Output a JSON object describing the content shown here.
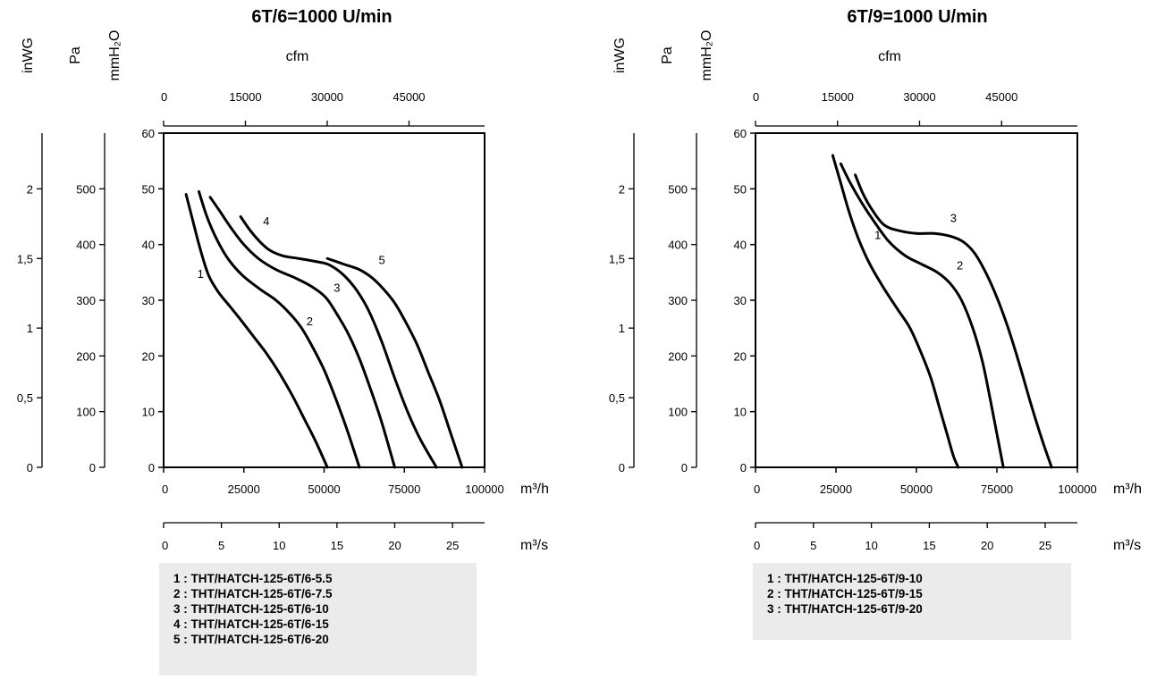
{
  "chart_data": [
    {
      "type": "line",
      "title": "6T/6=1000 U/min",
      "axes": {
        "left_labels": [
          "inWG",
          "Pa",
          "mmH₂O"
        ],
        "top_label": "cfm",
        "bottom_unit_1": "m³/h",
        "bottom_unit_2": "m³/s",
        "x_range": [
          0,
          100000
        ],
        "y_range": [
          0,
          60
        ],
        "x_ticks": [
          "0",
          "25000",
          "50000",
          "75000",
          "100000"
        ],
        "y_ticks": [
          "0",
          "10",
          "20",
          "30",
          "40",
          "50",
          "60"
        ],
        "pa_ticks": [
          "0",
          "100",
          "200",
          "300",
          "400",
          "500"
        ],
        "inwg_ticks": [
          "0",
          "0,5",
          "1",
          "1,5",
          "2"
        ],
        "cfm_ticks": [
          "0",
          "15000",
          "30000",
          "45000"
        ],
        "m3s_ticks": [
          "0",
          "5",
          "10",
          "15",
          "20",
          "25"
        ]
      },
      "series": [
        {
          "label": "1",
          "points": [
            [
              7000,
              49
            ],
            [
              9000,
              44.5
            ],
            [
              11500,
              39
            ],
            [
              14000,
              34.5
            ],
            [
              17000,
              31.5
            ],
            [
              20500,
              29
            ],
            [
              24000,
              26.5
            ],
            [
              28000,
              23.5
            ],
            [
              32000,
              20.5
            ],
            [
              36000,
              17
            ],
            [
              40000,
              13
            ],
            [
              44000,
              8.5
            ],
            [
              47500,
              4.5
            ],
            [
              51000,
              0
            ]
          ]
        },
        {
          "label": "2",
          "points": [
            [
              11000,
              49.5
            ],
            [
              13500,
              45
            ],
            [
              16500,
              41
            ],
            [
              20000,
              37.5
            ],
            [
              24500,
              34.5
            ],
            [
              30000,
              32
            ],
            [
              35000,
              30
            ],
            [
              39500,
              27.5
            ],
            [
              43000,
              25
            ],
            [
              46500,
              21.5
            ],
            [
              50000,
              17.5
            ],
            [
              53500,
              12.5
            ],
            [
              57000,
              7
            ],
            [
              61000,
              0
            ]
          ]
        },
        {
          "label": "3",
          "points": [
            [
              14500,
              48.5
            ],
            [
              17500,
              46
            ],
            [
              21000,
              43
            ],
            [
              25000,
              40
            ],
            [
              29500,
              37.5
            ],
            [
              35000,
              35.5
            ],
            [
              41000,
              34
            ],
            [
              46000,
              32.5
            ],
            [
              50500,
              30.5
            ],
            [
              54000,
              27.5
            ],
            [
              57500,
              24
            ],
            [
              61000,
              19.5
            ],
            [
              64500,
              14
            ],
            [
              68000,
              8
            ],
            [
              72000,
              0
            ]
          ]
        },
        {
          "label": "4",
          "points": [
            [
              24000,
              45
            ],
            [
              27000,
              42.5
            ],
            [
              30000,
              40.5
            ],
            [
              33000,
              39
            ],
            [
              37000,
              38
            ],
            [
              42000,
              37.5
            ],
            [
              47000,
              37
            ],
            [
              51000,
              36.5
            ],
            [
              54000,
              35.5
            ],
            [
              57000,
              34
            ],
            [
              60500,
              31.5
            ],
            [
              64000,
              28
            ],
            [
              68000,
              22.5
            ],
            [
              72000,
              16
            ],
            [
              76000,
              10
            ],
            [
              80000,
              5
            ],
            [
              85000,
              0
            ]
          ]
        },
        {
          "label": "5",
          "points": [
            [
              51000,
              37.5
            ],
            [
              56000,
              36.5
            ],
            [
              61000,
              35.5
            ],
            [
              65000,
              34
            ],
            [
              68500,
              32
            ],
            [
              72000,
              29.5
            ],
            [
              75500,
              26
            ],
            [
              79000,
              22
            ],
            [
              82500,
              17
            ],
            [
              86000,
              12
            ],
            [
              89500,
              6
            ],
            [
              93000,
              0
            ]
          ]
        }
      ],
      "curve_label_positions": [
        {
          "label": "1",
          "x": 11500,
          "y": 34
        },
        {
          "label": "2",
          "x": 45500,
          "y": 25.5
        },
        {
          "label": "3",
          "x": 54000,
          "y": 31.5
        },
        {
          "label": "4",
          "x": 32000,
          "y": 43.5
        },
        {
          "label": "5",
          "x": 68000,
          "y": 36.5
        }
      ],
      "legend": [
        "1 : THT/HATCH-125-6T/6-5.5",
        "2 : THT/HATCH-125-6T/6-7.5",
        "3 : THT/HATCH-125-6T/6-10",
        "4 : THT/HATCH-125-6T/6-15",
        "5 : THT/HATCH-125-6T/6-20"
      ]
    },
    {
      "type": "line",
      "title": "6T/9=1000 U/min",
      "axes": {
        "left_labels": [
          "inWG",
          "Pa",
          "mmH₂O"
        ],
        "top_label": "cfm",
        "bottom_unit_1": "m³/h",
        "bottom_unit_2": "m³/s",
        "x_range": [
          0,
          100000
        ],
        "y_range": [
          0,
          60
        ],
        "x_ticks": [
          "0",
          "25000",
          "50000",
          "75000",
          "100000"
        ],
        "y_ticks": [
          "0",
          "10",
          "20",
          "30",
          "40",
          "50",
          "60"
        ],
        "pa_ticks": [
          "0",
          "100",
          "200",
          "300",
          "400",
          "500"
        ],
        "inwg_ticks": [
          "0",
          "0,5",
          "1",
          "1,5",
          "2"
        ],
        "cfm_ticks": [
          "0",
          "15000",
          "30000",
          "45000"
        ],
        "m3s_ticks": [
          "0",
          "5",
          "10",
          "15",
          "20",
          "25"
        ]
      },
      "series": [
        {
          "label": "1",
          "points": [
            [
              24000,
              56
            ],
            [
              26500,
              51
            ],
            [
              29000,
              46
            ],
            [
              32000,
              41
            ],
            [
              35500,
              36.5
            ],
            [
              39500,
              32.5
            ],
            [
              44000,
              28.5
            ],
            [
              48000,
              25
            ],
            [
              51500,
              20.5
            ],
            [
              54500,
              16
            ],
            [
              57000,
              11
            ],
            [
              59500,
              6
            ],
            [
              61500,
              2
            ],
            [
              63000,
              0
            ]
          ]
        },
        {
          "label": "2",
          "points": [
            [
              26500,
              54.5
            ],
            [
              29500,
              51
            ],
            [
              33000,
              47.5
            ],
            [
              37000,
              44
            ],
            [
              41500,
              40.5
            ],
            [
              46500,
              38
            ],
            [
              51500,
              36.5
            ],
            [
              56500,
              35
            ],
            [
              60500,
              33
            ],
            [
              64000,
              30
            ],
            [
              67500,
              25
            ],
            [
              70500,
              19
            ],
            [
              73000,
              12
            ],
            [
              75000,
              6
            ],
            [
              77000,
              0
            ]
          ]
        },
        {
          "label": "3",
          "points": [
            [
              31000,
              52.5
            ],
            [
              33500,
              49
            ],
            [
              36500,
              46
            ],
            [
              40000,
              43.5
            ],
            [
              44500,
              42.5
            ],
            [
              50000,
              42
            ],
            [
              55500,
              42
            ],
            [
              60500,
              41.5
            ],
            [
              64500,
              40.5
            ],
            [
              68000,
              38.5
            ],
            [
              71500,
              35
            ],
            [
              75000,
              30.5
            ],
            [
              78500,
              25
            ],
            [
              82000,
              18.5
            ],
            [
              85500,
              11.5
            ],
            [
              89000,
              5
            ],
            [
              92000,
              0
            ]
          ]
        }
      ],
      "curve_label_positions": [
        {
          "label": "1",
          "x": 38000,
          "y": 41
        },
        {
          "label": "2",
          "x": 63500,
          "y": 35.5
        },
        {
          "label": "3",
          "x": 61500,
          "y": 44
        }
      ],
      "legend": [
        "1 : THT/HATCH-125-6T/9-10",
        "2 : THT/HATCH-125-6T/9-15",
        "3 : THT/HATCH-125-6T/9-20"
      ]
    }
  ]
}
